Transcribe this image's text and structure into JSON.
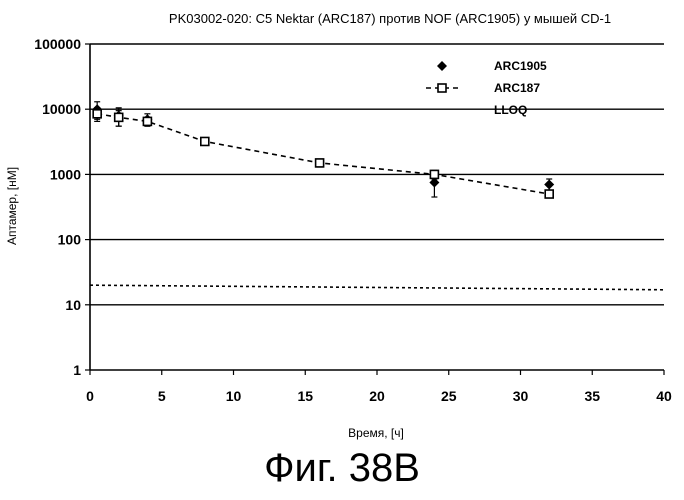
{
  "figure_caption": "Фиг. 38B",
  "chart_data": {
    "type": "scatter",
    "title": "PK03002-020: C5 Nektar (ARC187) против NOF (ARC1905) у мышей CD-1",
    "xlabel": "Время, [ч]",
    "ylabel": "Аптамер, [нМ]",
    "xlim": [
      0,
      40
    ],
    "ylim": [
      1,
      100000
    ],
    "y_scale": "log",
    "x_ticks": [
      "0",
      "5",
      "10",
      "15",
      "20",
      "25",
      "30",
      "35",
      "40"
    ],
    "y_ticks": [
      "1",
      "10",
      "100",
      "1000",
      "10000",
      "100000"
    ],
    "grid": "horizontal",
    "legend_position": "top-right",
    "series": [
      {
        "name": "ARC1905",
        "marker": "diamond",
        "line": "none",
        "x": [
          0.5,
          2,
          4,
          24,
          32
        ],
        "y": [
          10000,
          8000,
          7000,
          750,
          700
        ],
        "error": [
          3000,
          2500,
          1500,
          300,
          150
        ]
      },
      {
        "name": "ARC187",
        "marker": "square",
        "line": "dashed",
        "x": [
          0.5,
          2,
          4,
          8,
          16,
          24,
          32
        ],
        "y": [
          8500,
          7500,
          6500,
          3200,
          1500,
          1000,
          500
        ],
        "error": [
          2000,
          2000,
          1000,
          300,
          200,
          150,
          60
        ]
      },
      {
        "name": "LLOQ",
        "marker": "none",
        "line": "dotted",
        "x": [
          0,
          40
        ],
        "y": [
          20,
          17
        ]
      }
    ]
  }
}
